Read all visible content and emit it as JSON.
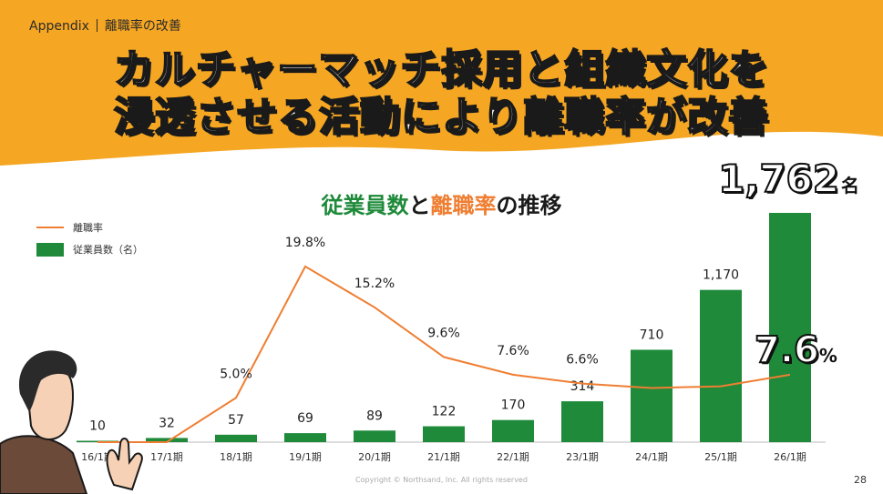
{
  "header": {
    "section": "Appendix",
    "topic": "離職率の改善",
    "title_line1": "カルチャーマッチ採用と組織文化を",
    "title_line2": "浸透させる活動により離職率が改善"
  },
  "chart_title": {
    "part1": "従業員数",
    "part2": "と",
    "part3": "離職率",
    "part4": "の推移"
  },
  "legend": {
    "rate": "離職率",
    "employees": "従業員数（名）"
  },
  "highlight": {
    "employees_value": "1,762",
    "employees_unit": "名",
    "rate_value": "7.6",
    "rate_unit": "%"
  },
  "footer": {
    "copyright": "Copyright © Northsand, Inc. All rights reserved",
    "page": "28"
  },
  "colors": {
    "header_bg": "#f5a623",
    "bar": "#1e8a3a",
    "line": "#ef7e32",
    "axis": "#bbbbbb"
  },
  "chart_data": {
    "type": "bar+line",
    "categories": [
      "16/1期",
      "17/1期",
      "18/1期",
      "19/1期",
      "20/1期",
      "21/1期",
      "22/1期",
      "23/1期",
      "24/1期",
      "25/1期",
      "26/1期"
    ],
    "series": [
      {
        "name": "従業員数（名）",
        "type": "bar",
        "values": [
          10,
          32,
          57,
          69,
          89,
          122,
          170,
          314,
          710,
          1170,
          1762
        ],
        "labels": [
          "10",
          "32",
          "57",
          "69",
          "89",
          "122",
          "170",
          "314",
          "710",
          "1,170",
          ""
        ]
      },
      {
        "name": "離職率",
        "type": "line",
        "values": [
          0,
          0,
          5.0,
          19.8,
          15.2,
          9.6,
          7.6,
          6.6,
          6.1,
          6.3,
          7.6
        ],
        "labels": [
          "",
          "",
          "5.0%",
          "19.8%",
          "15.2%",
          "9.6%",
          "7.6%",
          "6.6%",
          "",
          "",
          ""
        ]
      }
    ],
    "bar_ylim": [
      0,
      1762
    ],
    "line_ylim": [
      0,
      20
    ]
  }
}
